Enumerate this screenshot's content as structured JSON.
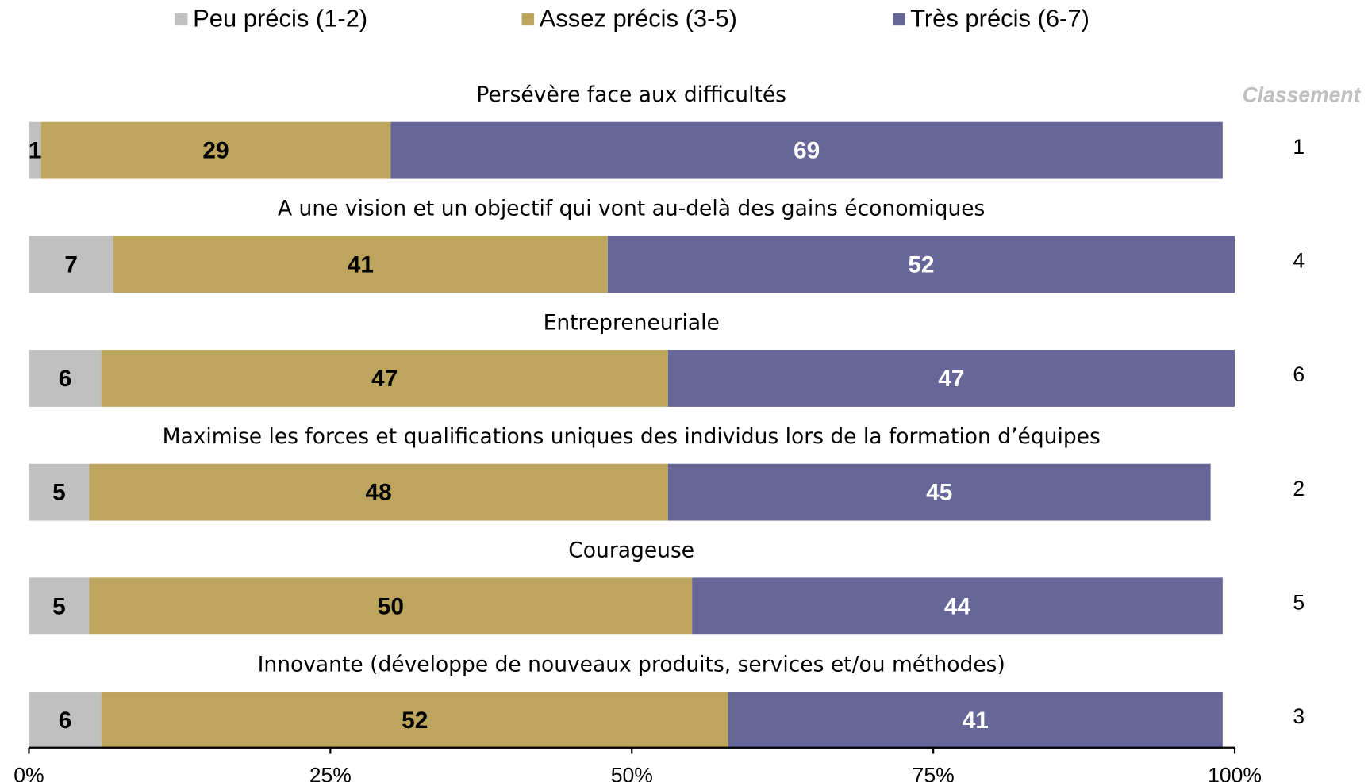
{
  "chart_data": {
    "type": "stacked_barh",
    "categories": [
      "Persévère face aux difficultés",
      "A une vision et un objectif qui vont au-delà des gains économiques",
      "Entrepreneuriale",
      "Maximise les forces et qualifications uniques des individus lors de la formation d’équipes",
      "Courageuse",
      "Innovante (développe de nouveaux produits, services et/ou méthodes)"
    ],
    "series": [
      {
        "name": "Peu précis (1-2)",
        "color": "#c0c0c0",
        "values": [
          1,
          7,
          6,
          5,
          5,
          6
        ]
      },
      {
        "name": "Assez précis (3-5)",
        "color": "#bda55d",
        "values": [
          29,
          41,
          47,
          48,
          50,
          52
        ]
      },
      {
        "name": "Très précis (6-7)",
        "color": "#666699",
        "values": [
          69,
          52,
          47,
          45,
          44,
          41
        ]
      }
    ],
    "rank_title": "Classement",
    "ranks": [
      1,
      4,
      6,
      2,
      5,
      3
    ],
    "xlim": [
      0,
      100
    ],
    "xticks": [
      {
        "value": 0,
        "label": "0%"
      },
      {
        "value": 25,
        "label": "25%"
      },
      {
        "value": 50,
        "label": "50%"
      },
      {
        "value": 75,
        "label": "75%"
      },
      {
        "value": 100,
        "label": "100%"
      }
    ],
    "legend": "top"
  }
}
